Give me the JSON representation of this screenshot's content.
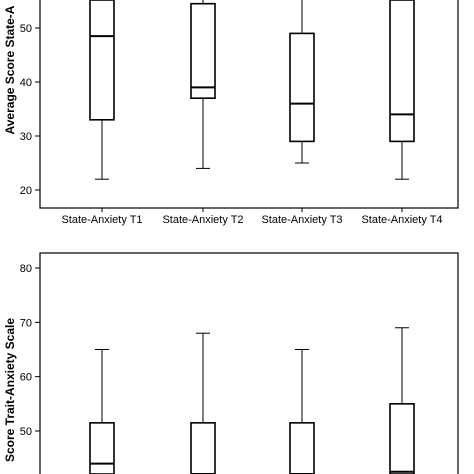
{
  "chart_data": [
    {
      "type": "boxplot",
      "ylabel": "Average Score State-A",
      "categories": [
        "State-Anxiety T1",
        "State-Anxiety T2",
        "State-Anxiety T3",
        "State-Anxiety T4"
      ],
      "yticks": [
        20,
        30,
        40,
        50
      ],
      "ylim": [
        18,
        56
      ],
      "boxes": [
        {
          "whisker_low": 22,
          "q1": 33,
          "median": 48.5,
          "q3": 56,
          "whisker_high": 56
        },
        {
          "whisker_low": 24,
          "q1": 37,
          "median": 39,
          "q3": 54.5,
          "whisker_high": 56
        },
        {
          "whisker_low": 25,
          "q1": 29,
          "median": 36,
          "q3": 49,
          "whisker_high": 56
        },
        {
          "whisker_low": 22,
          "q1": 29,
          "median": 34,
          "q3": 56,
          "whisker_high": 56
        }
      ]
    },
    {
      "type": "boxplot",
      "ylabel": "Score Trait-Anxiety Scale",
      "categories": [
        "",
        "",
        "",
        ""
      ],
      "yticks": [
        50,
        60,
        70,
        80
      ],
      "ylim": [
        41.5,
        82
      ],
      "boxes": [
        {
          "whisker_low": 41.5,
          "q1": 41.5,
          "median": 44,
          "q3": 51.5,
          "whisker_high": 65
        },
        {
          "whisker_low": 41.5,
          "q1": 41.5,
          "median": 41.5,
          "q3": 51.5,
          "whisker_high": 68
        },
        {
          "whisker_low": 41.5,
          "q1": 41.5,
          "median": 41.5,
          "q3": 51.5,
          "whisker_high": 65
        },
        {
          "whisker_low": 41.5,
          "q1": 41.5,
          "median": 42.5,
          "q3": 55,
          "whisker_high": 69
        }
      ]
    }
  ]
}
